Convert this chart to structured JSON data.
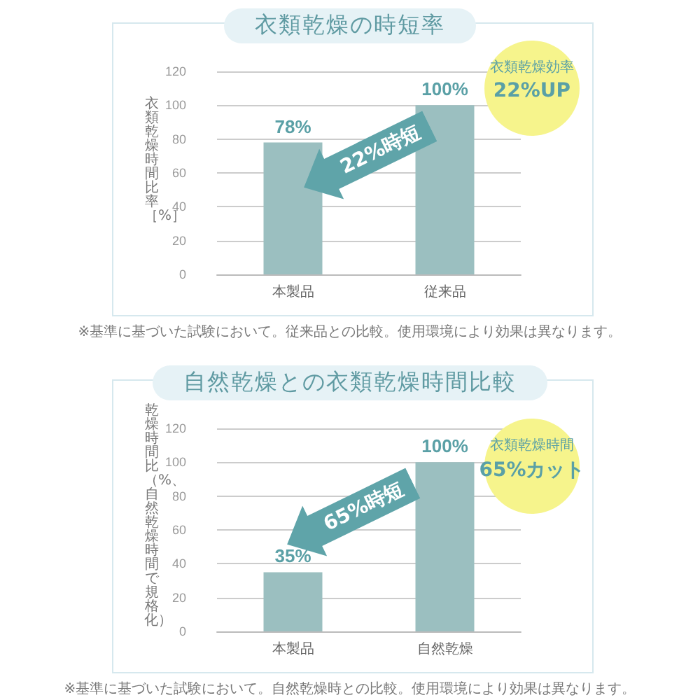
{
  "chart_data": [
    {
      "type": "bar",
      "title": "衣類乾燥の時短率",
      "ylabel": "衣類乾燥時間比率［%］",
      "categories": [
        "本製品",
        "従来品"
      ],
      "values": [
        78,
        100
      ],
      "value_labels": [
        "78%",
        "100%"
      ],
      "color": "#9bbfc0",
      "ylim": [
        0,
        120
      ],
      "yticks": [
        0,
        20,
        40,
        60,
        80,
        100,
        120
      ],
      "grid": "y",
      "annotations": [
        "22%時短",
        "衣類乾燥効率",
        "22%UP",
        "※基準に基づいた試験において。従来品との比較。使用環境により効果は異なります。"
      ]
    },
    {
      "type": "bar",
      "title": "自然乾燥との衣類乾燥時間比較",
      "ylabel": "乾燥時間比（%、自然乾燥時間で規格化）",
      "categories": [
        "本製品",
        "自然乾燥"
      ],
      "values": [
        35,
        100
      ],
      "value_labels": [
        "35%",
        "100%"
      ],
      "color": "#9bbfc0",
      "ylim": [
        0,
        120
      ],
      "yticks": [
        0,
        20,
        40,
        60,
        80,
        100,
        120
      ],
      "grid": "y",
      "annotations": [
        "65%時短",
        "衣類乾燥時間",
        "65%カット",
        "※基準に基づいた試験において。自然乾燥時との比較。使用環境により効果は異なります。"
      ]
    }
  ]
}
